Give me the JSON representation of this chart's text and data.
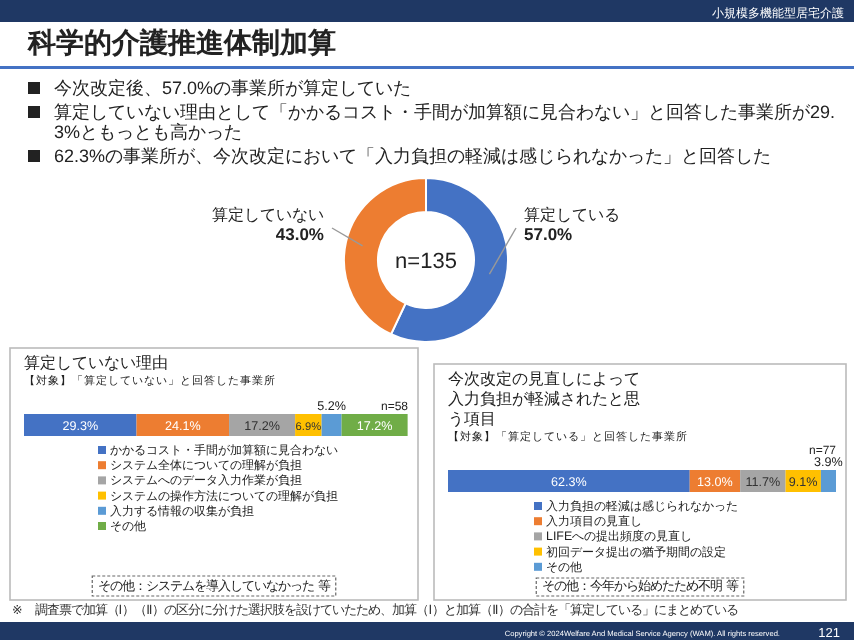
{
  "chart_data": [
    {
      "type": "other",
      "title": "科学的介護推進体制加算",
      "subtitle": "小規模多機能型居宅介護",
      "annotations": [
        "今次改定後、57.0%の事業所が算定していた",
        "算定していない理由として「かかるコスト・手間が加算額に見合わない」と回答した事業所が29.3%ともっとも高かった",
        "62.3%の事業所が、今次改定において「入力負担の軽減は感じられなかった」と回答した",
        "※　調査票で加算（Ⅰ）（Ⅱ）の区分に分けた選択肢を設けていたため、加算（Ⅰ）と加算（Ⅱ）の合計を「算定している」にまとめている",
        "Copyright © 2024Welfare And Medical Service Agency (WAM). All rights reserved.",
        "121"
      ]
    },
    {
      "type": "donut",
      "categories": [
        "算定している",
        "算定していない"
      ],
      "values": [
        57.0,
        43.0
      ],
      "value_labels": [
        "57.0%",
        "43.0%"
      ],
      "colors": [
        "#4472c4",
        "#ed7d31"
      ],
      "annotations": [
        "n=135"
      ]
    },
    {
      "type": "bar",
      "orientation": "horizontal",
      "stacked": true,
      "title": "算定していない理由",
      "subtitle": "【対象】「算定していない」と回答した事業所",
      "categories": [
        null
      ],
      "legend": "bottom",
      "annotations": [
        "n=58",
        "その他：システムを導入していなかった 等"
      ],
      "series": [
        {
          "name": "かかるコスト・手間が加算額に見合わない",
          "color": "#4472c4",
          "values": [
            29.3
          ],
          "value_labels": [
            "29.3%"
          ]
        },
        {
          "name": "システム全体についての理解が負担",
          "color": "#ed7d31",
          "values": [
            24.1
          ],
          "value_labels": [
            "24.1%"
          ]
        },
        {
          "name": "システムへのデータ入力作業が負担",
          "color": "#a5a5a5",
          "values": [
            17.2
          ],
          "value_labels": [
            "17.2%"
          ]
        },
        {
          "name": "システムの操作方法についての理解が負担",
          "color": "#ffc000",
          "values": [
            6.9
          ],
          "value_labels": [
            "6.9%"
          ]
        },
        {
          "name": "入力する情報の収集が負担",
          "color": "#5b9bd5",
          "values": [
            5.2
          ],
          "value_labels": [
            "5.2%"
          ]
        },
        {
          "name": "その他",
          "color": "#70ad47",
          "values": [
            17.2
          ],
          "value_labels": [
            "17.2%"
          ]
        }
      ]
    },
    {
      "type": "bar",
      "orientation": "horizontal",
      "stacked": true,
      "title": "今次改定の見直しによって入力負担が軽減されたと思う項目",
      "subtitle": "【対象】「算定している」と回答した事業所",
      "categories": [
        null
      ],
      "legend": "bottom",
      "annotations": [
        "n=77",
        "その他：今年から始めたため不明 等"
      ],
      "series": [
        {
          "name": "入力負担の軽減は感じられなかった",
          "color": "#4472c4",
          "values": [
            62.3
          ],
          "value_labels": [
            "62.3%"
          ]
        },
        {
          "name": "入力項目の見直し",
          "color": "#ed7d31",
          "values": [
            13.0
          ],
          "value_labels": [
            "13.0%"
          ]
        },
        {
          "name": "LIFEへの提出頻度の見直し",
          "color": "#a5a5a5",
          "values": [
            11.7
          ],
          "value_labels": [
            "11.7%"
          ]
        },
        {
          "name": "初回データ提出の猶予期間の設定",
          "color": "#ffc000",
          "values": [
            9.1
          ],
          "value_labels": [
            "9.1%"
          ]
        },
        {
          "name": "その他",
          "color": "#5b9bd5",
          "values": [
            3.9
          ],
          "value_labels": [
            "3.9%"
          ]
        }
      ]
    }
  ]
}
